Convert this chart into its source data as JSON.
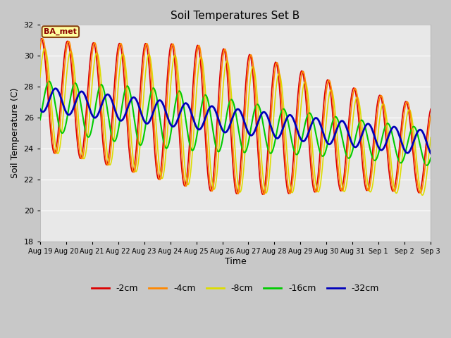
{
  "title": "Soil Temperatures Set B",
  "xlabel": "Time",
  "ylabel": "Soil Temperature (C)",
  "ylim": [
    18,
    32
  ],
  "yticks": [
    18,
    20,
    22,
    24,
    26,
    28,
    30,
    32
  ],
  "num_points": 2000,
  "series": {
    "-2cm": {
      "color": "#dd0000",
      "lw": 1.2
    },
    "-4cm": {
      "color": "#ff8800",
      "lw": 1.2
    },
    "-8cm": {
      "color": "#dddd00",
      "lw": 1.2
    },
    "-16cm": {
      "color": "#00cc00",
      "lw": 1.5
    },
    "-32cm": {
      "color": "#0000bb",
      "lw": 2.0
    }
  },
  "xtick_labels": [
    "Aug 19",
    "Aug 20",
    "Aug 21",
    "Aug 22",
    "Aug 23",
    "Aug 24",
    "Aug 25",
    "Aug 26",
    "Aug 27",
    "Aug 28",
    "Aug 29",
    "Aug 30",
    "Aug 31",
    "Sep 1",
    "Sep 2",
    "Sep 3"
  ],
  "annotation_text": "BA_met",
  "fig_bg": "#c8c8c8",
  "plot_bg": "#e8e8e8",
  "plot_bg_light": "#f0f0f0",
  "grid_color": "#ffffff"
}
